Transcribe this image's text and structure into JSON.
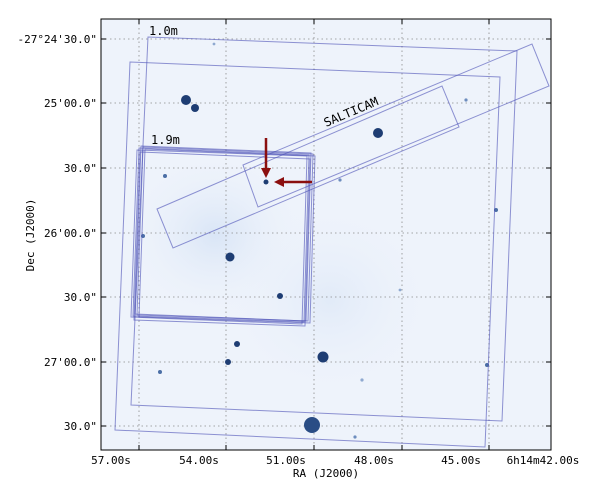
{
  "chart_data": {
    "type": "sky-image",
    "xlabel": "RA (J2000)",
    "ylabel": "Dec (J2000)",
    "x_ticks": [
      "57.00s",
      "54.00s",
      "51.00s",
      "48.00s",
      "45.00s",
      "6h14m42.00s"
    ],
    "y_ticks": [
      "-27°24'30.0\"",
      "25'00.0\"",
      "30.0\"",
      "26'00.0\"",
      "30.0\"",
      "27'00.0\"",
      "30.0\""
    ],
    "grid": true,
    "annotations": [
      {
        "label": "1.0m"
      },
      {
        "label": "1.9m"
      },
      {
        "label": "SALTICAM"
      }
    ],
    "colors": {
      "sky": "#eef3fb",
      "source": "#1e3d73",
      "footprint": "#4a4fb5",
      "arrow": "#8b0f0f"
    }
  }
}
